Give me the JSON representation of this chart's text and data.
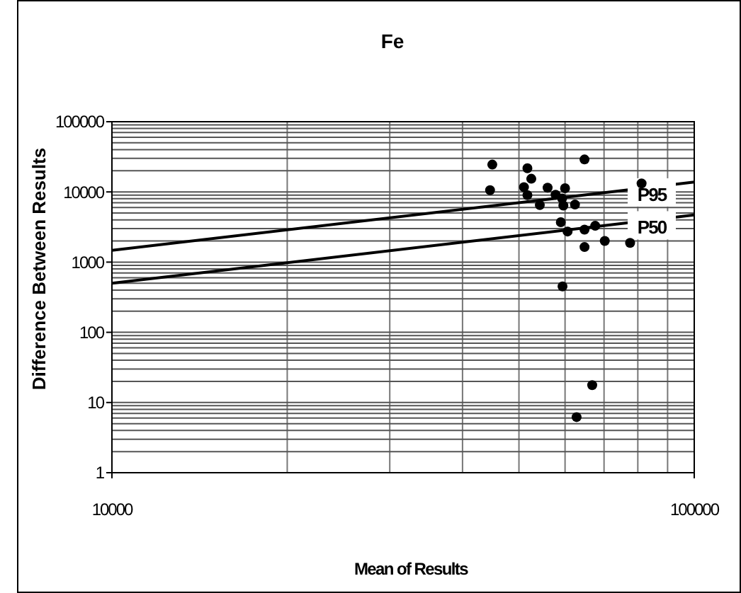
{
  "chart_data": {
    "type": "scatter",
    "title": "Fe",
    "xlabel": "Mean of Results",
    "ylabel": "Difference Between Results",
    "log": "xy",
    "grid": true,
    "xlim": [
      10000,
      100000
    ],
    "xticks": [
      10000,
      100000
    ],
    "ylim": [
      1,
      100000
    ],
    "yticks": [
      1,
      10,
      100,
      1000,
      10000,
      100000
    ],
    "series": [
      {
        "type": "scatter",
        "marker": "circle",
        "color": "#000000",
        "x": [
          45000,
          44600,
          51700,
          52500,
          51000,
          51700,
          54300,
          56000,
          57800,
          59300,
          60000,
          59600,
          62400,
          64800,
          59000,
          60600,
          64800,
          67600,
          64800,
          70200,
          77600,
          81200,
          59400,
          62800,
          66800
        ],
        "values": [
          24500,
          10600,
          21700,
          15400,
          11700,
          9000,
          6500,
          11500,
          9100,
          8050,
          11300,
          6400,
          6600,
          29000,
          3700,
          2730,
          2900,
          3290,
          1640,
          2000,
          1880,
          13200,
          450,
          6.2,
          17.7
        ]
      },
      {
        "type": "line",
        "name": "P95",
        "color": "#000000",
        "x": [
          10000,
          100000
        ],
        "values": [
          1470,
          13800
        ]
      },
      {
        "type": "line",
        "name": "P50",
        "color": "#000000",
        "x": [
          10000,
          100000
        ],
        "values": [
          500,
          4690
        ]
      }
    ]
  }
}
